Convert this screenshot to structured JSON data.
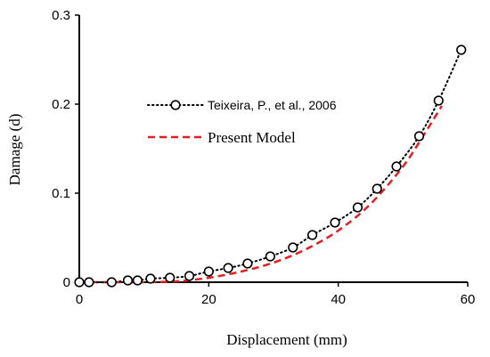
{
  "chart_data": {
    "type": "line",
    "xlabel": "Displacement (mm)",
    "ylabel": "Damage (d)",
    "xlim": [
      0,
      60
    ],
    "ylim": [
      0,
      0.3
    ],
    "xticks": [
      0,
      20,
      40,
      60
    ],
    "yticks": [
      0,
      0.1,
      0.2,
      0.3
    ],
    "xtick_labels": [
      "0",
      "20",
      "40",
      "60"
    ],
    "ytick_labels": [
      "0",
      "0.1",
      "0.2",
      "0.3"
    ],
    "grid": false,
    "legend_position": "center-left",
    "series": [
      {
        "name": "Teixeira, P., et al., 2006",
        "style": "dotted-with-circle-markers",
        "color": "#000000",
        "x": [
          0,
          1.5,
          5,
          7.5,
          9,
          11,
          14,
          17,
          20,
          23,
          26,
          29.5,
          33,
          36,
          39.5,
          43,
          46,
          49,
          52.5,
          55.5,
          59
        ],
        "y": [
          0,
          0,
          0,
          0.002,
          0.002,
          0.004,
          0.005,
          0.007,
          0.012,
          0.016,
          0.021,
          0.029,
          0.039,
          0.053,
          0.067,
          0.084,
          0.105,
          0.13,
          0.164,
          0.204,
          0.261
        ]
      },
      {
        "name": "Present Model",
        "style": "dashed",
        "color": "#e02020",
        "x": [
          0,
          5,
          10,
          15,
          20,
          25,
          30,
          35,
          40,
          45,
          50,
          53,
          56
        ],
        "y": [
          0,
          0,
          0,
          0.001,
          0.005,
          0.012,
          0.022,
          0.037,
          0.058,
          0.088,
          0.13,
          0.163,
          0.198
        ]
      }
    ]
  }
}
